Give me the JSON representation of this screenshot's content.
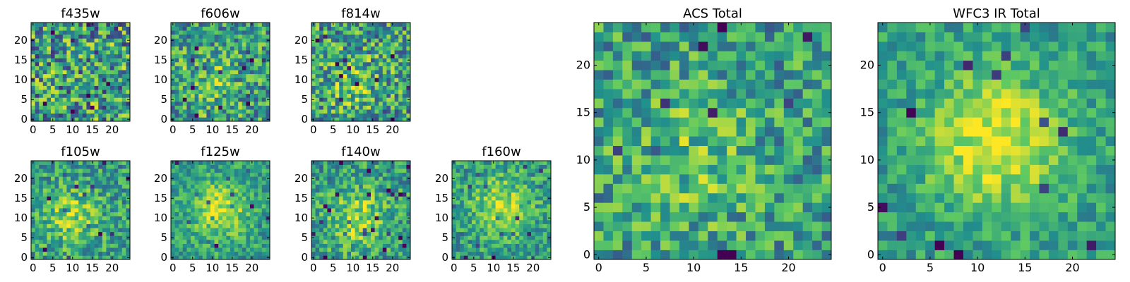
{
  "figure": {
    "background": "#ffffff",
    "colormap": "viridis",
    "colormap_stops": [
      "#440154",
      "#3b528b",
      "#21918c",
      "#5ec962",
      "#fde725"
    ]
  },
  "chart_data": [
    {
      "type": "heatmap",
      "title": "f435w",
      "xticks": [
        "0",
        "5",
        "10",
        "15",
        "20"
      ],
      "yticks": [
        "0",
        "5",
        "10",
        "15",
        "20"
      ],
      "grid_size": 25,
      "xlim": [
        0,
        24
      ],
      "ylim": [
        0,
        24
      ],
      "style": "noise",
      "center": [
        12,
        12
      ],
      "peak_strength": 0.0,
      "noise_level": 0.8,
      "seed": 11
    },
    {
      "type": "heatmap",
      "title": "f606w",
      "xticks": [
        "0",
        "5",
        "10",
        "15",
        "20"
      ],
      "yticks": [
        "0",
        "5",
        "10",
        "15",
        "20"
      ],
      "grid_size": 25,
      "xlim": [
        0,
        24
      ],
      "ylim": [
        0,
        24
      ],
      "style": "faint-source",
      "center": [
        9,
        9
      ],
      "peak_strength": 0.3,
      "noise_level": 0.65,
      "seed": 23
    },
    {
      "type": "heatmap",
      "title": "f814w",
      "xticks": [
        "0",
        "5",
        "10",
        "15",
        "20"
      ],
      "yticks": [
        "0",
        "5",
        "10",
        "15",
        "20"
      ],
      "grid_size": 25,
      "xlim": [
        0,
        24
      ],
      "ylim": [
        0,
        24
      ],
      "style": "faint-source",
      "center": [
        10,
        9
      ],
      "peak_strength": 0.3,
      "noise_level": 0.7,
      "seed": 37
    },
    {
      "type": "heatmap",
      "title": "f105w",
      "xticks": [
        "0",
        "5",
        "10",
        "15",
        "20"
      ],
      "yticks": [
        "0",
        "5",
        "10",
        "15",
        "20"
      ],
      "grid_size": 25,
      "xlim": [
        0,
        24
      ],
      "ylim": [
        0,
        24
      ],
      "style": "source",
      "center": [
        10,
        10
      ],
      "peak_strength": 0.45,
      "noise_level": 0.5,
      "seed": 41
    },
    {
      "type": "heatmap",
      "title": "f125w",
      "xticks": [
        "0",
        "5",
        "10",
        "15",
        "20"
      ],
      "yticks": [
        "0",
        "5",
        "10",
        "15",
        "20"
      ],
      "grid_size": 25,
      "xlim": [
        0,
        24
      ],
      "ylim": [
        0,
        24
      ],
      "style": "source",
      "center": [
        12,
        12
      ],
      "peak_strength": 0.6,
      "noise_level": 0.4,
      "seed": 53
    },
    {
      "type": "heatmap",
      "title": "f140w",
      "xticks": [
        "0",
        "5",
        "10",
        "15",
        "20"
      ],
      "yticks": [
        "0",
        "5",
        "10",
        "15",
        "20"
      ],
      "grid_size": 25,
      "xlim": [
        0,
        24
      ],
      "ylim": [
        0,
        24
      ],
      "style": "source",
      "center": [
        11,
        10
      ],
      "peak_strength": 0.5,
      "noise_level": 0.5,
      "seed": 67
    },
    {
      "type": "heatmap",
      "title": "f160w",
      "xticks": [
        "0",
        "5",
        "10",
        "15",
        "20"
      ],
      "yticks": [
        "0",
        "5",
        "10",
        "15",
        "20"
      ],
      "grid_size": 25,
      "xlim": [
        0,
        24
      ],
      "ylim": [
        0,
        24
      ],
      "style": "source",
      "center": [
        12,
        13
      ],
      "peak_strength": 0.55,
      "noise_level": 0.45,
      "seed": 79
    },
    {
      "type": "heatmap",
      "title": "ACS Total",
      "xticks": [
        "0",
        "5",
        "10",
        "15",
        "20"
      ],
      "yticks": [
        "0",
        "5",
        "10",
        "15",
        "20"
      ],
      "grid_size": 25,
      "xlim": [
        0,
        24
      ],
      "ylim": [
        0,
        24
      ],
      "style": "faint-source",
      "center": [
        10,
        10
      ],
      "peak_strength": 0.3,
      "noise_level": 0.55,
      "seed": 97
    },
    {
      "type": "heatmap",
      "title": "WFC3 IR Total",
      "xticks": [
        "0",
        "5",
        "10",
        "15",
        "20"
      ],
      "yticks": [
        "0",
        "5",
        "10",
        "15",
        "20"
      ],
      "grid_size": 25,
      "xlim": [
        0,
        24
      ],
      "ylim": [
        0,
        24
      ],
      "style": "source",
      "center": [
        12,
        12
      ],
      "peak_strength": 0.7,
      "noise_level": 0.35,
      "seed": 113
    }
  ]
}
